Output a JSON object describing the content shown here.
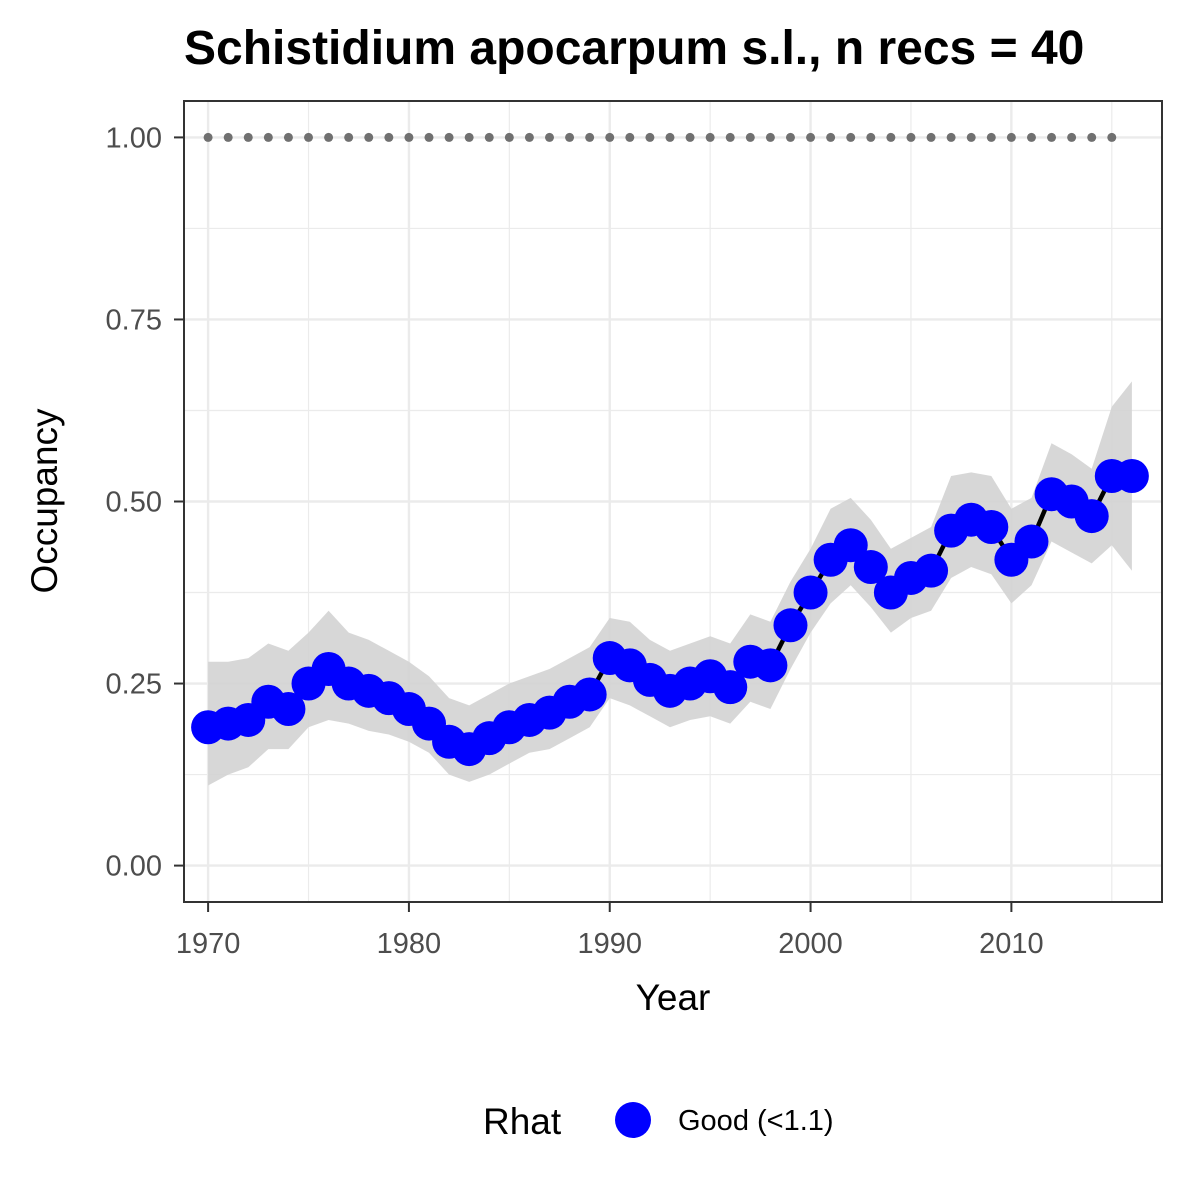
{
  "chart_data": {
    "type": "line",
    "title": "Schistidium apocarpum s.l., n recs = 40",
    "xlabel": "Year",
    "ylabel": "Occupancy",
    "xlim": [
      1968.8,
      2017.5
    ],
    "ylim": [
      -0.05,
      1.05
    ],
    "x_ticks": [
      1970,
      1980,
      1990,
      2000,
      2010
    ],
    "x_tick_labels": [
      "1970",
      "1980",
      "1990",
      "2000",
      "2010"
    ],
    "y_ticks": [
      0,
      0.25,
      0.5,
      0.75,
      1.0
    ],
    "y_tick_labels": [
      "0.00",
      "0.25",
      "0.50",
      "0.75",
      "1.00"
    ],
    "grid": true,
    "legend": {
      "position": "bottom",
      "title": "Rhat",
      "items": [
        {
          "label": "Good (<1.1)",
          "color": "#0000ff"
        }
      ]
    },
    "series": [
      {
        "name": "Good (<1.1)",
        "kind": "line+points",
        "color": "#0000ff",
        "line_color": "#000000",
        "x": [
          1970,
          1971,
          1972,
          1973,
          1974,
          1975,
          1976,
          1977,
          1978,
          1979,
          1980,
          1981,
          1982,
          1983,
          1984,
          1985,
          1986,
          1987,
          1988,
          1989,
          1990,
          1991,
          1992,
          1993,
          1994,
          1995,
          1996,
          1997,
          1998,
          1999,
          2000,
          2001,
          2002,
          2003,
          2004,
          2005,
          2006,
          2007,
          2008,
          2009,
          2010,
          2011,
          2012,
          2013,
          2014,
          2015,
          2016
        ],
        "y": [
          0.19,
          0.195,
          0.2,
          0.225,
          0.215,
          0.25,
          0.27,
          0.25,
          0.24,
          0.23,
          0.215,
          0.195,
          0.17,
          0.16,
          0.175,
          0.19,
          0.2,
          0.21,
          0.225,
          0.235,
          0.285,
          0.275,
          0.255,
          0.24,
          0.25,
          0.26,
          0.245,
          0.28,
          0.275,
          0.33,
          0.375,
          0.42,
          0.44,
          0.41,
          0.375,
          0.395,
          0.405,
          0.46,
          0.475,
          0.465,
          0.42,
          0.445,
          0.51,
          0.5,
          0.48,
          0.535,
          0.535
        ]
      },
      {
        "name": "",
        "kind": "ribbon",
        "color": "#d3d3d3",
        "x": [
          1970,
          1971,
          1972,
          1973,
          1974,
          1975,
          1976,
          1977,
          1978,
          1979,
          1980,
          1981,
          1982,
          1983,
          1984,
          1985,
          1986,
          1987,
          1988,
          1989,
          1990,
          1991,
          1992,
          1993,
          1994,
          1995,
          1996,
          1997,
          1998,
          1999,
          2000,
          2001,
          2002,
          2003,
          2004,
          2005,
          2006,
          2007,
          2008,
          2009,
          2010,
          2011,
          2012,
          2013,
          2014,
          2015,
          2016
        ],
        "lower": [
          0.11,
          0.125,
          0.135,
          0.16,
          0.16,
          0.19,
          0.2,
          0.195,
          0.185,
          0.18,
          0.17,
          0.155,
          0.125,
          0.115,
          0.125,
          0.14,
          0.155,
          0.16,
          0.175,
          0.19,
          0.23,
          0.22,
          0.205,
          0.19,
          0.2,
          0.205,
          0.195,
          0.225,
          0.215,
          0.27,
          0.32,
          0.36,
          0.385,
          0.355,
          0.32,
          0.34,
          0.35,
          0.395,
          0.41,
          0.4,
          0.36,
          0.385,
          0.445,
          0.43,
          0.415,
          0.44,
          0.405
        ],
        "upper": [
          0.28,
          0.28,
          0.285,
          0.305,
          0.295,
          0.32,
          0.35,
          0.32,
          0.31,
          0.295,
          0.28,
          0.26,
          0.23,
          0.22,
          0.235,
          0.25,
          0.26,
          0.27,
          0.285,
          0.3,
          0.34,
          0.335,
          0.31,
          0.295,
          0.305,
          0.315,
          0.305,
          0.345,
          0.335,
          0.39,
          0.435,
          0.49,
          0.505,
          0.475,
          0.435,
          0.45,
          0.465,
          0.535,
          0.54,
          0.535,
          0.49,
          0.505,
          0.58,
          0.565,
          0.545,
          0.63,
          0.665
        ]
      },
      {
        "name": "",
        "kind": "dotted-line",
        "color": "#707070",
        "x": [
          1970,
          1971,
          1972,
          1973,
          1974,
          1975,
          1976,
          1977,
          1978,
          1979,
          1980,
          1981,
          1982,
          1983,
          1984,
          1985,
          1986,
          1987,
          1988,
          1989,
          1990,
          1991,
          1992,
          1993,
          1994,
          1995,
          1996,
          1997,
          1998,
          1999,
          2000,
          2001,
          2002,
          2003,
          2004,
          2005,
          2006,
          2007,
          2008,
          2009,
          2010,
          2011,
          2012,
          2013,
          2014,
          2015
        ],
        "y": [
          1,
          1,
          1,
          1,
          1,
          1,
          1,
          1,
          1,
          1,
          1,
          1,
          1,
          1,
          1,
          1,
          1,
          1,
          1,
          1,
          1,
          1,
          1,
          1,
          1,
          1,
          1,
          1,
          1,
          1,
          1,
          1,
          1,
          1,
          1,
          1,
          1,
          1,
          1,
          1,
          1,
          1,
          1,
          1,
          1,
          1
        ]
      }
    ]
  }
}
